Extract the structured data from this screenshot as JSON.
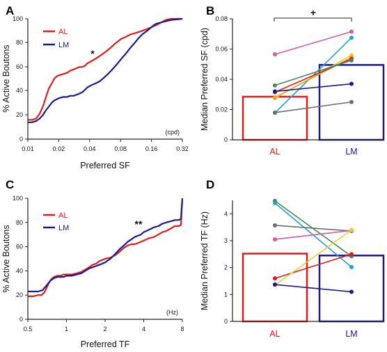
{
  "panels": {
    "A": {
      "letter": "A",
      "xlabel": "Preferred SF",
      "ylabel": "% Active Boutons",
      "unit": "(cpd)",
      "significance": "*",
      "xticks": [
        "0.01",
        "0.02",
        "0.04",
        "0.08",
        "0.16",
        "0.32"
      ],
      "yticks": [
        "0",
        "20",
        "40",
        "60",
        "80",
        "100"
      ],
      "legend": [
        {
          "label": "AL",
          "color": "#e31a1c"
        },
        {
          "label": "LM",
          "color": "#1a1a8c"
        }
      ]
    },
    "B": {
      "letter": "B",
      "ylabel": "Median Preferred SF (cpd)",
      "significance": "+",
      "yticks": [
        "0",
        "0.02",
        "0.04",
        "0.06",
        "0.08"
      ],
      "categories": [
        {
          "label": "AL",
          "color": "#e31a1c"
        },
        {
          "label": "LM",
          "color": "#1a1a8c"
        }
      ]
    },
    "C": {
      "letter": "C",
      "xlabel": "Preferred TF",
      "ylabel": "% Active Boutons",
      "unit": "(Hz)",
      "significance": "**",
      "xticks": [
        "0.5",
        "1",
        "2",
        "4",
        "8"
      ],
      "yticks": [
        "0",
        "20",
        "40",
        "60",
        "80",
        "100"
      ],
      "legend": [
        {
          "label": "AL",
          "color": "#e31a1c"
        },
        {
          "label": "LM",
          "color": "#1a1a8c"
        }
      ]
    },
    "D": {
      "letter": "D",
      "ylabel": "Median Preferred TF (Hz)",
      "yticks": [
        "0",
        "1",
        "2",
        "3",
        "4"
      ],
      "categories": [
        {
          "label": "AL",
          "color": "#e31a1c"
        },
        {
          "label": "LM",
          "color": "#1a1a8c"
        }
      ]
    }
  },
  "chart_data": [
    {
      "panel": "A",
      "type": "line",
      "xscale": "log2",
      "xlim": [
        0.01,
        0.32
      ],
      "ylim": [
        0,
        100
      ],
      "xlabel": "Preferred SF",
      "ylabel": "% Active Boutons",
      "series": [
        {
          "name": "AL",
          "color": "#e31a1c",
          "points": [
            [
              0.01,
              16
            ],
            [
              0.011,
              16
            ],
            [
              0.012,
              17
            ],
            [
              0.013,
              21
            ],
            [
              0.014,
              27
            ],
            [
              0.015,
              35
            ],
            [
              0.016,
              42
            ],
            [
              0.017,
              46
            ],
            [
              0.018,
              50
            ],
            [
              0.019,
              52
            ],
            [
              0.02,
              53
            ],
            [
              0.022,
              54
            ],
            [
              0.024,
              55
            ],
            [
              0.026,
              57
            ],
            [
              0.028,
              58
            ],
            [
              0.03,
              59
            ],
            [
              0.032,
              60
            ],
            [
              0.034,
              60
            ],
            [
              0.036,
              61
            ],
            [
              0.038,
              63
            ],
            [
              0.04,
              64
            ],
            [
              0.042,
              65
            ],
            [
              0.044,
              66
            ],
            [
              0.046,
              67
            ],
            [
              0.05,
              69
            ],
            [
              0.054,
              71
            ],
            [
              0.058,
              73
            ],
            [
              0.062,
              75
            ],
            [
              0.066,
              77
            ],
            [
              0.07,
              79
            ],
            [
              0.075,
              81
            ],
            [
              0.08,
              83
            ],
            [
              0.09,
              85
            ],
            [
              0.1,
              87
            ],
            [
              0.11,
              88
            ],
            [
              0.12,
              89
            ],
            [
              0.13,
              90
            ],
            [
              0.14,
              91
            ],
            [
              0.15,
              92
            ],
            [
              0.16,
              93
            ],
            [
              0.17,
              94
            ],
            [
              0.18,
              95
            ],
            [
              0.2,
              97
            ],
            [
              0.22,
              99
            ],
            [
              0.25,
              100
            ],
            [
              0.32,
              100
            ]
          ]
        },
        {
          "name": "LM",
          "color": "#1a1a8c",
          "points": [
            [
              0.01,
              14
            ],
            [
              0.011,
              14
            ],
            [
              0.012,
              15
            ],
            [
              0.013,
              17
            ],
            [
              0.014,
              20
            ],
            [
              0.015,
              24
            ],
            [
              0.016,
              27
            ],
            [
              0.017,
              30
            ],
            [
              0.018,
              32
            ],
            [
              0.019,
              33
            ],
            [
              0.02,
              34
            ],
            [
              0.022,
              35
            ],
            [
              0.024,
              35
            ],
            [
              0.026,
              36
            ],
            [
              0.028,
              36
            ],
            [
              0.03,
              37
            ],
            [
              0.032,
              38
            ],
            [
              0.034,
              39
            ],
            [
              0.036,
              41
            ],
            [
              0.038,
              43
            ],
            [
              0.04,
              44
            ],
            [
              0.042,
              45
            ],
            [
              0.045,
              46
            ],
            [
              0.05,
              48
            ],
            [
              0.055,
              51
            ],
            [
              0.06,
              54
            ],
            [
              0.065,
              57
            ],
            [
              0.07,
              60
            ],
            [
              0.075,
              63
            ],
            [
              0.08,
              66
            ],
            [
              0.09,
              71
            ],
            [
              0.1,
              76
            ],
            [
              0.11,
              80
            ],
            [
              0.12,
              84
            ],
            [
              0.13,
              87
            ],
            [
              0.14,
              89
            ],
            [
              0.15,
              91
            ],
            [
              0.16,
              93
            ],
            [
              0.17,
              95
            ],
            [
              0.18,
              96
            ],
            [
              0.2,
              97
            ],
            [
              0.22,
              98
            ],
            [
              0.25,
              99
            ],
            [
              0.32,
              100
            ]
          ]
        }
      ]
    },
    {
      "panel": "B",
      "type": "bar",
      "categories": [
        "AL",
        "LM"
      ],
      "ylim": [
        0,
        0.08
      ],
      "ylabel": "Median Preferred SF (cpd)",
      "values": [
        0.0285,
        0.0495
      ],
      "bar_colors": [
        "#e31a1c",
        "#1a1a8c"
      ],
      "paired_lines": [
        {
          "color": "#d65aa0",
          "values": [
            0.0565,
            0.0715
          ]
        },
        {
          "color": "#23a0d2",
          "values": [
            0.0178,
            0.0675
          ]
        },
        {
          "color": "#e8d035",
          "values": [
            0.0275,
            0.056
          ]
        },
        {
          "color": "#f0a020",
          "values": [
            0.028,
            0.0545
          ]
        },
        {
          "color": "#e31a1c",
          "values": [
            0.0315,
            0.0535
          ]
        },
        {
          "color": "#4a8a5a",
          "values": [
            0.036,
            0.0525
          ]
        },
        {
          "color": "#1a1a8c",
          "values": [
            0.032,
            0.037
          ]
        },
        {
          "color": "#6e6e6e",
          "values": [
            0.018,
            0.025
          ]
        }
      ]
    },
    {
      "panel": "C",
      "type": "line",
      "xscale": "log2",
      "xlim": [
        0.5,
        8
      ],
      "ylim": [
        0,
        100
      ],
      "xlabel": "Preferred TF",
      "ylabel": "% Active Boutons",
      "series": [
        {
          "name": "AL",
          "color": "#e31a1c",
          "points": [
            [
              0.5,
              19
            ],
            [
              0.55,
              19
            ],
            [
              0.6,
              20
            ],
            [
              0.64,
              20
            ],
            [
              0.67,
              22
            ],
            [
              0.7,
              26
            ],
            [
              0.73,
              30
            ],
            [
              0.76,
              33
            ],
            [
              0.8,
              35
            ],
            [
              0.85,
              36
            ],
            [
              0.9,
              36
            ],
            [
              0.95,
              37
            ],
            [
              1,
              37
            ],
            [
              1.1,
              37
            ],
            [
              1.2,
              38
            ],
            [
              1.3,
              39
            ],
            [
              1.4,
              41
            ],
            [
              1.5,
              43
            ],
            [
              1.6,
              45
            ],
            [
              1.7,
              46
            ],
            [
              1.8,
              48
            ],
            [
              1.9,
              49
            ],
            [
              2,
              50
            ],
            [
              2.2,
              51
            ],
            [
              2.4,
              53
            ],
            [
              2.6,
              56
            ],
            [
              2.8,
              59
            ],
            [
              3,
              61
            ],
            [
              3.2,
              62
            ],
            [
              3.4,
              62
            ],
            [
              3.6,
              63
            ],
            [
              3.8,
              64
            ],
            [
              4,
              65
            ],
            [
              4.4,
              67
            ],
            [
              4.8,
              68
            ],
            [
              5.2,
              70
            ],
            [
              5.6,
              72
            ],
            [
              6,
              73
            ],
            [
              6.5,
              75
            ],
            [
              7,
              77
            ],
            [
              7.5,
              77
            ],
            [
              7.8,
              78
            ],
            [
              7.9,
              90
            ],
            [
              8,
              98
            ]
          ]
        },
        {
          "name": "LM",
          "color": "#1a1a8c",
          "points": [
            [
              0.5,
              23
            ],
            [
              0.55,
              23
            ],
            [
              0.6,
              23
            ],
            [
              0.65,
              24
            ],
            [
              0.7,
              28
            ],
            [
              0.75,
              32
            ],
            [
              0.8,
              34
            ],
            [
              0.85,
              35
            ],
            [
              0.9,
              35
            ],
            [
              0.95,
              35
            ],
            [
              1,
              36
            ],
            [
              1.1,
              36
            ],
            [
              1.2,
              37
            ],
            [
              1.3,
              38
            ],
            [
              1.4,
              40
            ],
            [
              1.5,
              42
            ],
            [
              1.6,
              43
            ],
            [
              1.7,
              44
            ],
            [
              1.8,
              45
            ],
            [
              1.9,
              46
            ],
            [
              2,
              47
            ],
            [
              2.2,
              50
            ],
            [
              2.4,
              54
            ],
            [
              2.6,
              58
            ],
            [
              2.8,
              61
            ],
            [
              3,
              64
            ],
            [
              3.2,
              66
            ],
            [
              3.4,
              68
            ],
            [
              3.6,
              69
            ],
            [
              3.8,
              70
            ],
            [
              4,
              72
            ],
            [
              4.4,
              74
            ],
            [
              4.8,
              76
            ],
            [
              5.2,
              77
            ],
            [
              5.6,
              79
            ],
            [
              6,
              80
            ],
            [
              6.5,
              81
            ],
            [
              7,
              82
            ],
            [
              7.5,
              82
            ],
            [
              7.8,
              83
            ],
            [
              7.9,
              92
            ],
            [
              8,
              100
            ]
          ]
        }
      ]
    },
    {
      "panel": "D",
      "type": "bar",
      "categories": [
        "AL",
        "LM"
      ],
      "ylim": [
        0,
        4.5
      ],
      "ylabel": "Median Preferred TF (Hz)",
      "values": [
        2.52,
        2.45
      ],
      "bar_colors": [
        "#e31a1c",
        "#1a1a8c"
      ],
      "paired_lines": [
        {
          "color": "#4a8a5a",
          "values": [
            4.48,
            2.42
          ]
        },
        {
          "color": "#23a0d2",
          "values": [
            4.4,
            2.02
          ]
        },
        {
          "color": "#6e6e6e",
          "values": [
            3.57,
            3.36
          ]
        },
        {
          "color": "#d65aa0",
          "values": [
            3.05,
            3.38
          ]
        },
        {
          "color": "#e31a1c",
          "values": [
            1.6,
            2.5
          ]
        },
        {
          "color": "#e8d035",
          "values": [
            1.35,
            3.4
          ]
        },
        {
          "color": "#1a1a8c",
          "values": [
            1.37,
            1.1
          ]
        }
      ]
    }
  ]
}
